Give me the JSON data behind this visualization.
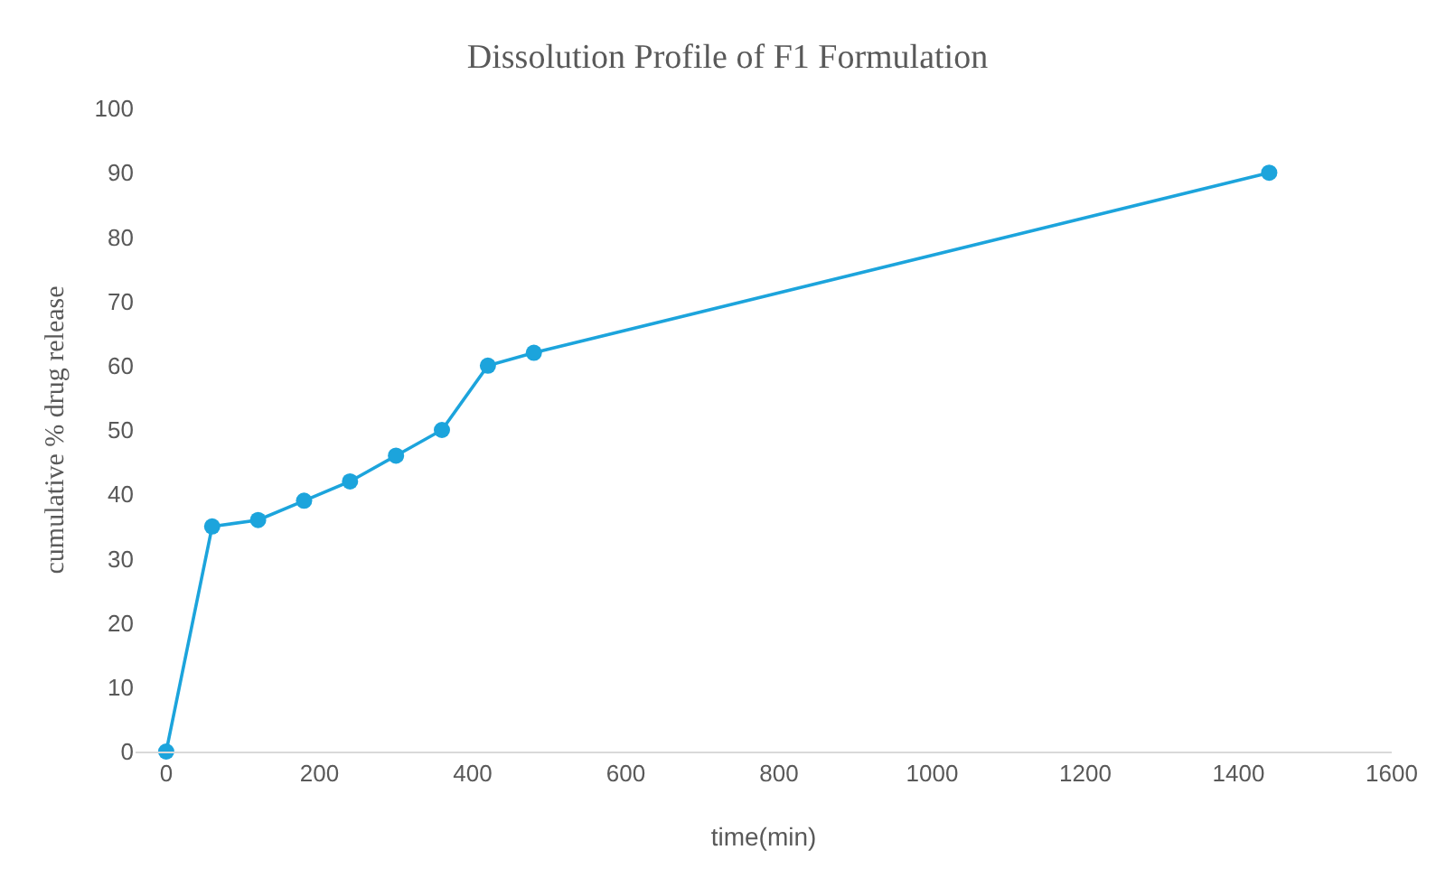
{
  "chart_data": {
    "type": "line",
    "title": "Dissolution Profile of F1 Formulation",
    "xlabel": "time(min)",
    "ylabel": "cumulative % drug release",
    "x": [
      0,
      60,
      120,
      180,
      240,
      300,
      360,
      420,
      480,
      1440
    ],
    "series": [
      {
        "color": "#1ca4dc",
        "values": [
          0,
          35,
          36,
          39,
          42,
          46,
          50,
          60,
          62,
          90
        ]
      }
    ],
    "xlim": [
      -40,
      1600
    ],
    "xticks": [
      0,
      200,
      400,
      600,
      800,
      1000,
      1200,
      1400,
      1600
    ],
    "ylim": [
      0,
      100
    ],
    "yticks": [
      0,
      10,
      20,
      30,
      40,
      50,
      60,
      70,
      80,
      90,
      100
    ],
    "grid": false,
    "marker": "circle",
    "line_style": "solid"
  }
}
